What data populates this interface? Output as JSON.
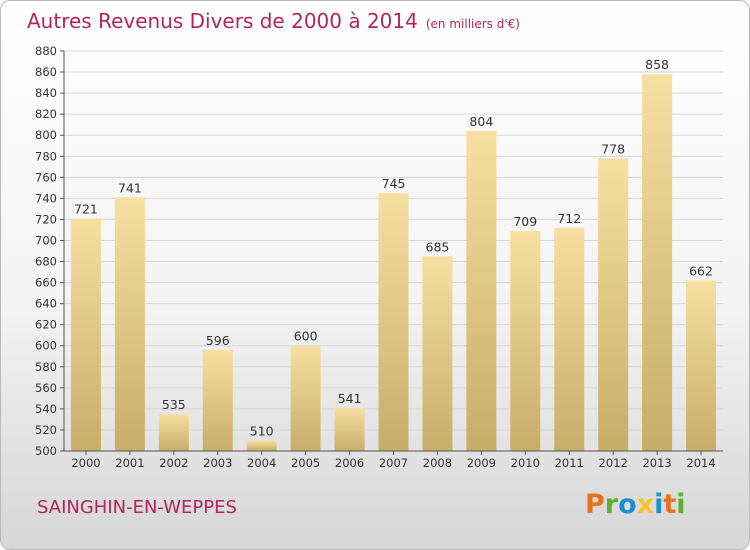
{
  "title": "Autres Revenus Divers de 2000 à 2014",
  "subtitle": "(en milliers d'€)",
  "location": "SAINGHIN-EN-WEPPES",
  "brand": {
    "letters": [
      {
        "ch": "P",
        "color": "#e5731c"
      },
      {
        "ch": "r",
        "color": "#5fae2e"
      },
      {
        "ch": "o",
        "color": "#1a8fd0"
      },
      {
        "ch": "x",
        "color": "#f2c230"
      },
      {
        "ch": "i",
        "color": "#1a8fd0"
      },
      {
        "ch": "t",
        "color": "#e5731c"
      },
      {
        "ch": "i",
        "color": "#5fae2e"
      }
    ]
  },
  "colors": {
    "title": "#b0265a",
    "bar_top": "#f6dfa0",
    "bar_bottom": "#c7ad68",
    "grid": "#d6d6d6"
  },
  "chart_data": {
    "type": "bar",
    "categories": [
      "2000",
      "2001",
      "2002",
      "2003",
      "2004",
      "2005",
      "2006",
      "2007",
      "2008",
      "2009",
      "2010",
      "2011",
      "2012",
      "2013",
      "2014"
    ],
    "values": [
      721,
      741,
      535,
      596,
      510,
      600,
      541,
      745,
      685,
      804,
      709,
      712,
      778,
      858,
      662
    ],
    "title": "Autres Revenus Divers de 2000 à 2014",
    "ylim": [
      500,
      880
    ],
    "yticks": [
      500,
      520,
      540,
      560,
      580,
      600,
      620,
      640,
      660,
      680,
      700,
      720,
      740,
      760,
      780,
      800,
      820,
      840,
      860,
      880
    ],
    "grid": true,
    "data_labels": true
  }
}
